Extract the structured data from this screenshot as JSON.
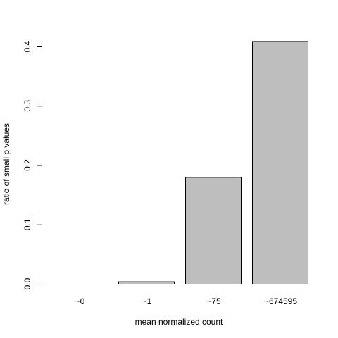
{
  "chart_data": {
    "type": "bar",
    "title": "",
    "xlabel": "mean normalized count",
    "ylabel": "ratio of small p values",
    "categories": [
      "~0",
      "~1",
      "~75",
      "~674595"
    ],
    "values": [
      0.0,
      0.004,
      0.18,
      0.409
    ],
    "yticks": [
      "0.0",
      "0.1",
      "0.2",
      "0.3",
      "0.4"
    ],
    "ylim": [
      0,
      0.4
    ],
    "grid": false,
    "legend": "none",
    "colors": {
      "bar_fill": "#bebebe",
      "bar_stroke": "#000000",
      "axis": "#000000"
    }
  }
}
